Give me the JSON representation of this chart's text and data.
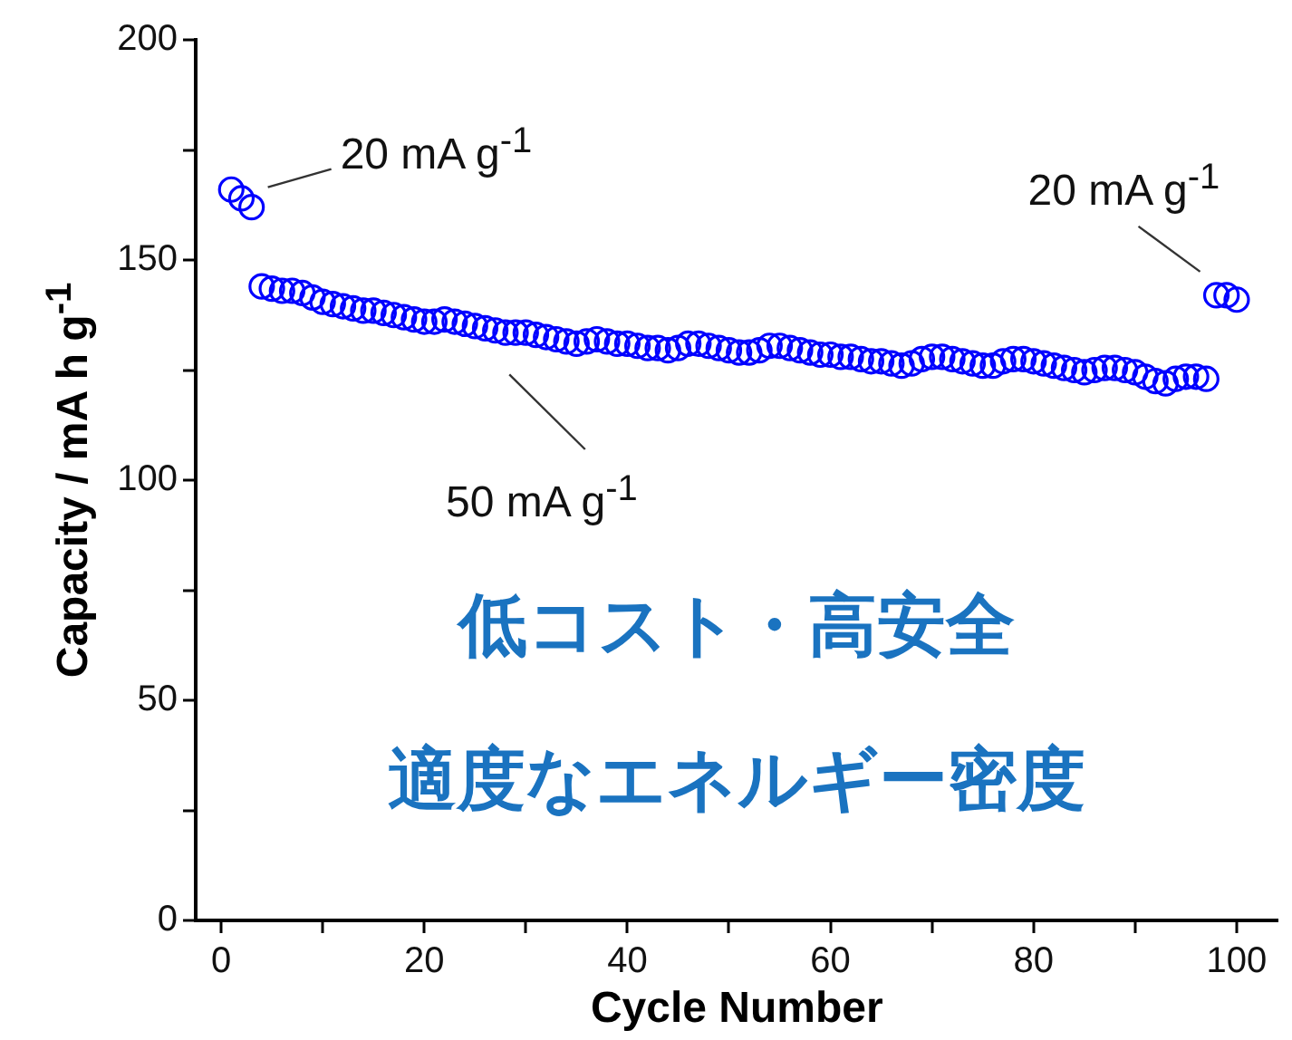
{
  "chart_data": {
    "type": "scatter",
    "xlabel": "Cycle Number",
    "ylabel": "Capacity  /  mA h g$^{-1}$",
    "x": [
      1,
      2,
      3,
      4,
      5,
      6,
      7,
      8,
      9,
      10,
      11,
      12,
      13,
      14,
      15,
      16,
      17,
      18,
      19,
      20,
      21,
      22,
      23,
      24,
      25,
      26,
      27,
      28,
      29,
      30,
      31,
      32,
      33,
      34,
      35,
      36,
      37,
      38,
      39,
      40,
      41,
      42,
      43,
      44,
      45,
      46,
      47,
      48,
      49,
      50,
      51,
      52,
      53,
      54,
      55,
      56,
      57,
      58,
      59,
      60,
      61,
      62,
      63,
      64,
      65,
      66,
      67,
      68,
      69,
      70,
      71,
      72,
      73,
      74,
      75,
      76,
      77,
      78,
      79,
      80,
      81,
      82,
      83,
      84,
      85,
      86,
      87,
      88,
      89,
      90,
      91,
      92,
      93,
      94,
      95,
      96,
      97,
      98,
      99,
      100
    ],
    "series": [
      {
        "color": "#0000ff",
        "values": [
          166,
          164,
          162,
          144,
          143.5,
          143,
          143,
          142.5,
          141.5,
          140.5,
          140,
          139.5,
          139,
          138.5,
          138.5,
          138,
          137.5,
          137,
          136.5,
          136,
          136,
          136.5,
          136,
          135.5,
          135,
          134.5,
          134,
          133.5,
          133.5,
          133.5,
          133,
          132.5,
          132,
          131.5,
          131,
          131.5,
          132,
          131.5,
          131,
          131,
          130.5,
          130,
          130,
          129.5,
          130,
          131,
          131,
          130.5,
          130,
          129.5,
          129,
          129,
          129.5,
          130.5,
          130.5,
          130,
          129.5,
          129,
          128.5,
          128.5,
          128,
          128,
          127.5,
          127,
          127,
          126.5,
          126,
          126.5,
          127.5,
          128,
          128,
          127.5,
          127,
          126.5,
          126,
          126,
          127,
          127.5,
          127.5,
          127,
          126.5,
          126,
          125.5,
          125,
          124.5,
          125,
          125.5,
          125.5,
          125,
          124.5,
          123.5,
          122.5,
          122,
          123,
          123.5,
          123.5,
          123,
          142,
          142,
          141
        ]
      }
    ],
    "xlim": [
      -2.5,
      104
    ],
    "xticks": [
      0,
      {
        "value": 10,
        "label": null
      },
      20,
      {
        "value": 30,
        "label": null
      },
      40,
      {
        "value": 50,
        "label": null
      },
      60,
      {
        "value": 70,
        "label": null
      },
      80,
      {
        "value": 90,
        "label": null
      },
      100
    ],
    "ylim": [
      0,
      200
    ],
    "yticks": [
      0,
      {
        "value": 25,
        "label": null
      },
      50,
      {
        "value": 75,
        "label": null
      },
      100,
      {
        "value": 125,
        "label": null
      },
      150,
      {
        "value": 175,
        "label": null
      },
      200
    ],
    "marker": "circle",
    "grid": false,
    "legend": false,
    "annotations": [
      {
        "text": "20 mA g$^{-1}$",
        "x": 3,
        "y": 162
      },
      {
        "text": "20 mA g$^{-1}$",
        "x": 98,
        "y": 142
      },
      "50 mA g$^{-1}$",
      "低コスト・高安全",
      "適度なエネルギー密度"
    ]
  }
}
